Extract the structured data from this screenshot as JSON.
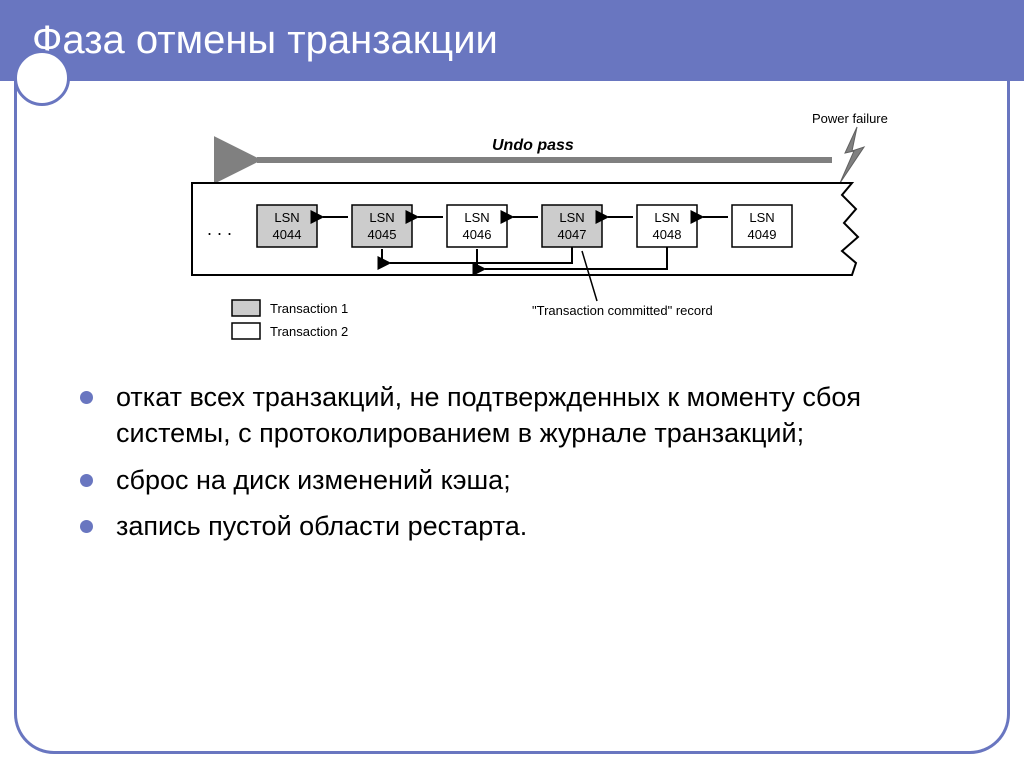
{
  "header": {
    "title": "Фаза отмены транзакции"
  },
  "diagram": {
    "undo_pass_label": "Undo pass",
    "power_failure_label": "Power failure",
    "ellipsis": ". . .",
    "lsn_label": "LSN",
    "blocks": [
      {
        "num": "4044",
        "shaded": true
      },
      {
        "num": "4045",
        "shaded": true
      },
      {
        "num": "4046",
        "shaded": false
      },
      {
        "num": "4047",
        "shaded": true
      },
      {
        "num": "4048",
        "shaded": false
      },
      {
        "num": "4049",
        "shaded": false
      }
    ],
    "committed_label": "\"Transaction committed\" record",
    "legend_t1": "Transaction 1",
    "legend_t2": "Transaction 2",
    "colors": {
      "shaded": "#cccccc",
      "unshaded": "#ffffff",
      "border": "#000000",
      "undo_arrow": "#808080",
      "text": "#000000"
    },
    "fontsize_undo": 16,
    "fontsize_power": 13,
    "fontsize_lsn": 13,
    "fontsize_legend": 13,
    "fontsize_committed": 13
  },
  "bullets": [
    "откат всех транзакций, не подтвержденных к моменту сбоя системы, с протоколированием в журнале транзакций;",
    "сброс на диск изменений кэша;",
    "запись пустой области рестарта."
  ],
  "accent_color": "#6976c0"
}
